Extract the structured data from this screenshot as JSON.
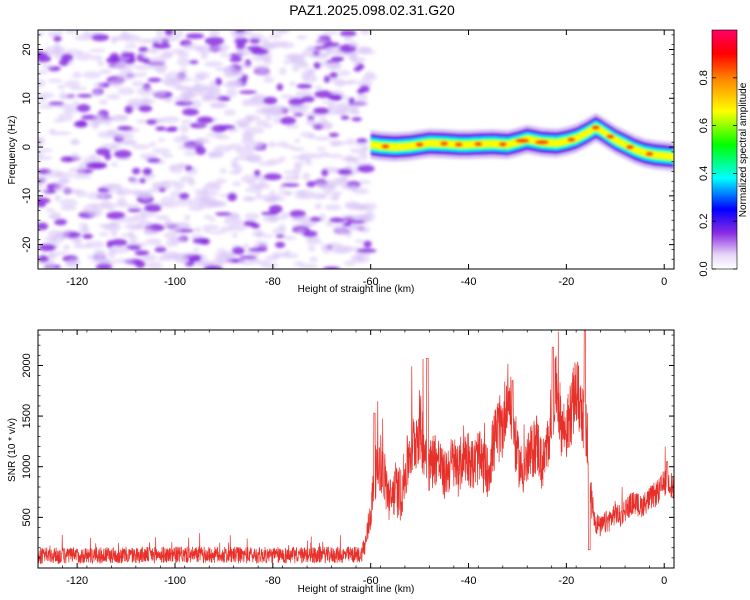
{
  "title": "PAZ1.2025.098.02.31.G20",
  "chart_data": [
    {
      "type": "heatmap",
      "xlabel": "Height of straight line (km)",
      "ylabel": "Frequency (Hz)",
      "xlim": [
        -128,
        2
      ],
      "ylim": [
        -25,
        24
      ],
      "xticks": [
        -120,
        -100,
        -80,
        -60,
        -40,
        -20,
        0
      ],
      "yticks": [
        -20,
        -10,
        0,
        10,
        20
      ],
      "noise_region_x": [
        -128,
        -60
      ],
      "signal_ridge": {
        "x": [
          -60,
          -58,
          -55,
          -52,
          -50,
          -48,
          -45,
          -42,
          -40,
          -38,
          -35,
          -32,
          -30,
          -28,
          -25,
          -22,
          -20,
          -18,
          -16,
          -14,
          -13,
          -12,
          -10,
          -8,
          -6,
          -4,
          -2,
          0,
          2
        ],
        "frequency": [
          0.5,
          0.2,
          0.0,
          0.2,
          0.5,
          0.8,
          0.7,
          0.5,
          0.5,
          0.6,
          0.7,
          0.5,
          1.0,
          1.6,
          1.0,
          0.8,
          1.2,
          1.8,
          2.8,
          4.0,
          3.5,
          2.8,
          1.5,
          0.5,
          -0.5,
          -1.2,
          -1.6,
          -1.8,
          -2.0
        ]
      },
      "colorbar": {
        "label": "Normalized spectral amplitude",
        "range": [
          0.0,
          1.0
        ],
        "ticks": [
          0.0,
          0.2,
          0.4,
          0.6,
          0.8
        ],
        "tick_labels": [
          "0.0",
          "0.2",
          "0.4",
          "0.6",
          "0.8"
        ],
        "colormap": "hsv-reversed"
      },
      "colors": {
        "noise": "#8a2be2",
        "noise_light": "#d8c4f5"
      }
    },
    {
      "type": "line",
      "xlabel": "Height of straight line (km)",
      "ylabel": "SNR (10 * v/v)",
      "xlim": [
        -128,
        2
      ],
      "ylim": [
        0,
        2350
      ],
      "xticks": [
        -120,
        -100,
        -80,
        -60,
        -40,
        -20,
        0
      ],
      "yticks": [
        500,
        1000,
        1500,
        2000
      ],
      "series_color": "#e8302a",
      "envelope": {
        "x": [
          -128,
          -100,
          -80,
          -62,
          -61,
          -60,
          -59,
          -58,
          -57,
          -56,
          -55,
          -54,
          -53,
          -52,
          -51,
          -50,
          -49,
          -48,
          -47,
          -46,
          -45,
          -44,
          -43,
          -42,
          -41,
          -40,
          -39,
          -38,
          -37,
          -36,
          -35,
          -34,
          -33,
          -32,
          -31,
          -30,
          -29,
          -28,
          -27,
          -26,
          -25,
          -24,
          -23,
          -22,
          -21,
          -20,
          -19,
          -18,
          -17,
          -16,
          -15,
          -14,
          -13,
          -12,
          -11,
          -10,
          -9,
          -8,
          -7,
          -6,
          -5,
          -4,
          -3,
          -2,
          -1,
          0,
          1,
          2
        ],
        "values": [
          120,
          130,
          125,
          130,
          250,
          550,
          950,
          1050,
          850,
          650,
          800,
          700,
          900,
          1150,
          1250,
          1400,
          1200,
          1000,
          1100,
          1050,
          900,
          1000,
          1050,
          950,
          1150,
          1100,
          1000,
          1100,
          1000,
          950,
          1200,
          1350,
          1400,
          1750,
          1450,
          1100,
          950,
          1050,
          1150,
          1250,
          1000,
          1150,
          1550,
          1800,
          1400,
          1350,
          1550,
          1750,
          1600,
          1350,
          700,
          450,
          400,
          450,
          480,
          550,
          500,
          580,
          620,
          650,
          600,
          640,
          680,
          720,
          760,
          840,
          860,
          780
        ],
        "noise_amplitude": [
          110,
          110,
          110,
          110,
          170,
          250,
          350,
          400,
          380,
          330,
          360,
          340,
          380,
          420,
          440,
          500,
          430,
          360,
          380,
          360,
          320,
          360,
          380,
          340,
          400,
          380,
          350,
          380,
          360,
          340,
          420,
          440,
          460,
          420,
          460,
          360,
          330,
          360,
          380,
          420,
          340,
          380,
          440,
          460,
          420,
          400,
          460,
          480,
          460,
          420,
          240,
          160,
          140,
          150,
          150,
          160,
          150,
          160,
          160,
          160,
          150,
          160,
          160,
          170,
          170,
          180,
          180,
          170
        ]
      }
    }
  ]
}
